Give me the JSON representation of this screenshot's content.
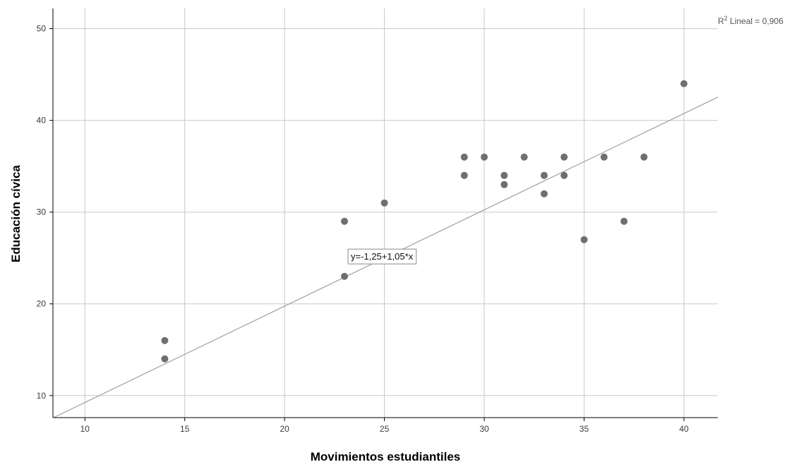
{
  "chart_data": {
    "type": "scatter",
    "title": "",
    "xlabel": "Movimientos estudiantiles",
    "ylabel": "Educación cívica",
    "xlim": [
      8.4,
      41.7
    ],
    "ylim": [
      7.6,
      52.2
    ],
    "x_ticks": [
      10,
      15,
      20,
      25,
      30,
      35,
      40
    ],
    "y_ticks": [
      10,
      20,
      30,
      40,
      50
    ],
    "grid": true,
    "points": [
      {
        "x": 14,
        "y": 16
      },
      {
        "x": 14,
        "y": 14
      },
      {
        "x": 23,
        "y": 29
      },
      {
        "x": 23,
        "y": 23
      },
      {
        "x": 25,
        "y": 31
      },
      {
        "x": 29,
        "y": 36
      },
      {
        "x": 29,
        "y": 34
      },
      {
        "x": 30,
        "y": 36
      },
      {
        "x": 31,
        "y": 34
      },
      {
        "x": 31,
        "y": 33
      },
      {
        "x": 32,
        "y": 36
      },
      {
        "x": 33,
        "y": 34
      },
      {
        "x": 33,
        "y": 32
      },
      {
        "x": 34,
        "y": 36
      },
      {
        "x": 34,
        "y": 34
      },
      {
        "x": 35,
        "y": 27
      },
      {
        "x": 36,
        "y": 36
      },
      {
        "x": 37,
        "y": 29
      },
      {
        "x": 38,
        "y": 36
      },
      {
        "x": 40,
        "y": 44
      }
    ],
    "fit_line": {
      "intercept": -1.25,
      "slope": 1.05
    },
    "equation_label": "y=-1,25+1,05*x",
    "r2_label": {
      "prefix": "R",
      "superscript": "2",
      "text": " Lineal = 0,906"
    },
    "colors": {
      "points": "#6f6f6f",
      "grid": "#c8c8c8",
      "fit_line": "#a0a0a0",
      "axis": "#000000"
    }
  }
}
